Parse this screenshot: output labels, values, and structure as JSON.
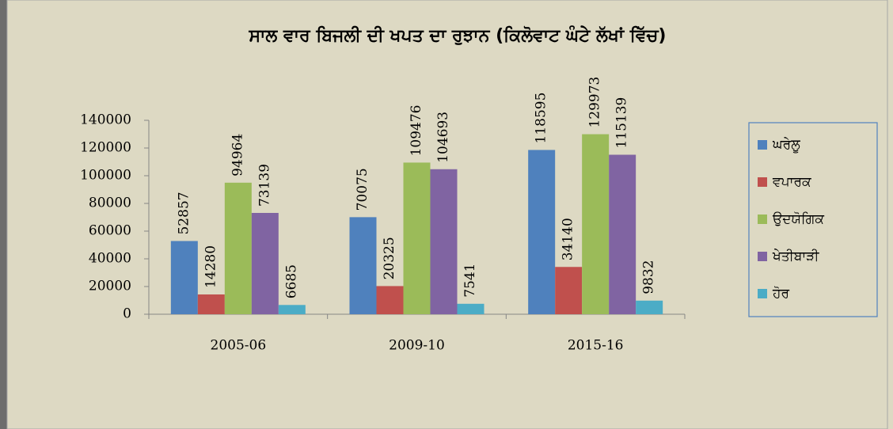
{
  "chart_data": {
    "type": "bar",
    "title": "ਸਾਲ ਵਾਰ ਬਿਜਲੀ ਦੀ ਖਪਤ ਦਾ ਰੁਝਾਨ (ਕਿਲੋਵਾਟ ਘੰਟੇ ਲੱਖਾਂ ਵਿੱਚ)",
    "categories": [
      "2005-06",
      "2009-10",
      "2015-16"
    ],
    "series": [
      {
        "name": "ਘਰੇਲੂ",
        "color": "#4f81bd",
        "values": [
          52857,
          70075,
          118595
        ]
      },
      {
        "name": "ਵਪਾਰਕ",
        "color": "#c0504d",
        "values": [
          14280,
          20325,
          34140
        ]
      },
      {
        "name": "ਉਦਯੋਗਿਕ",
        "color": "#9bbb59",
        "values": [
          94964,
          109476,
          129973
        ]
      },
      {
        "name": "ਖੇਤੀਬਾੜੀ",
        "color": "#8064a2",
        "values": [
          73139,
          104693,
          115139
        ]
      },
      {
        "name": "ਹੋਰ",
        "color": "#4bacc6",
        "values": [
          6685,
          7541,
          9832
        ]
      }
    ],
    "ylim": [
      0,
      140000
    ],
    "yticks": [
      0,
      20000,
      40000,
      60000,
      80000,
      100000,
      120000,
      140000
    ],
    "legend": "right"
  }
}
